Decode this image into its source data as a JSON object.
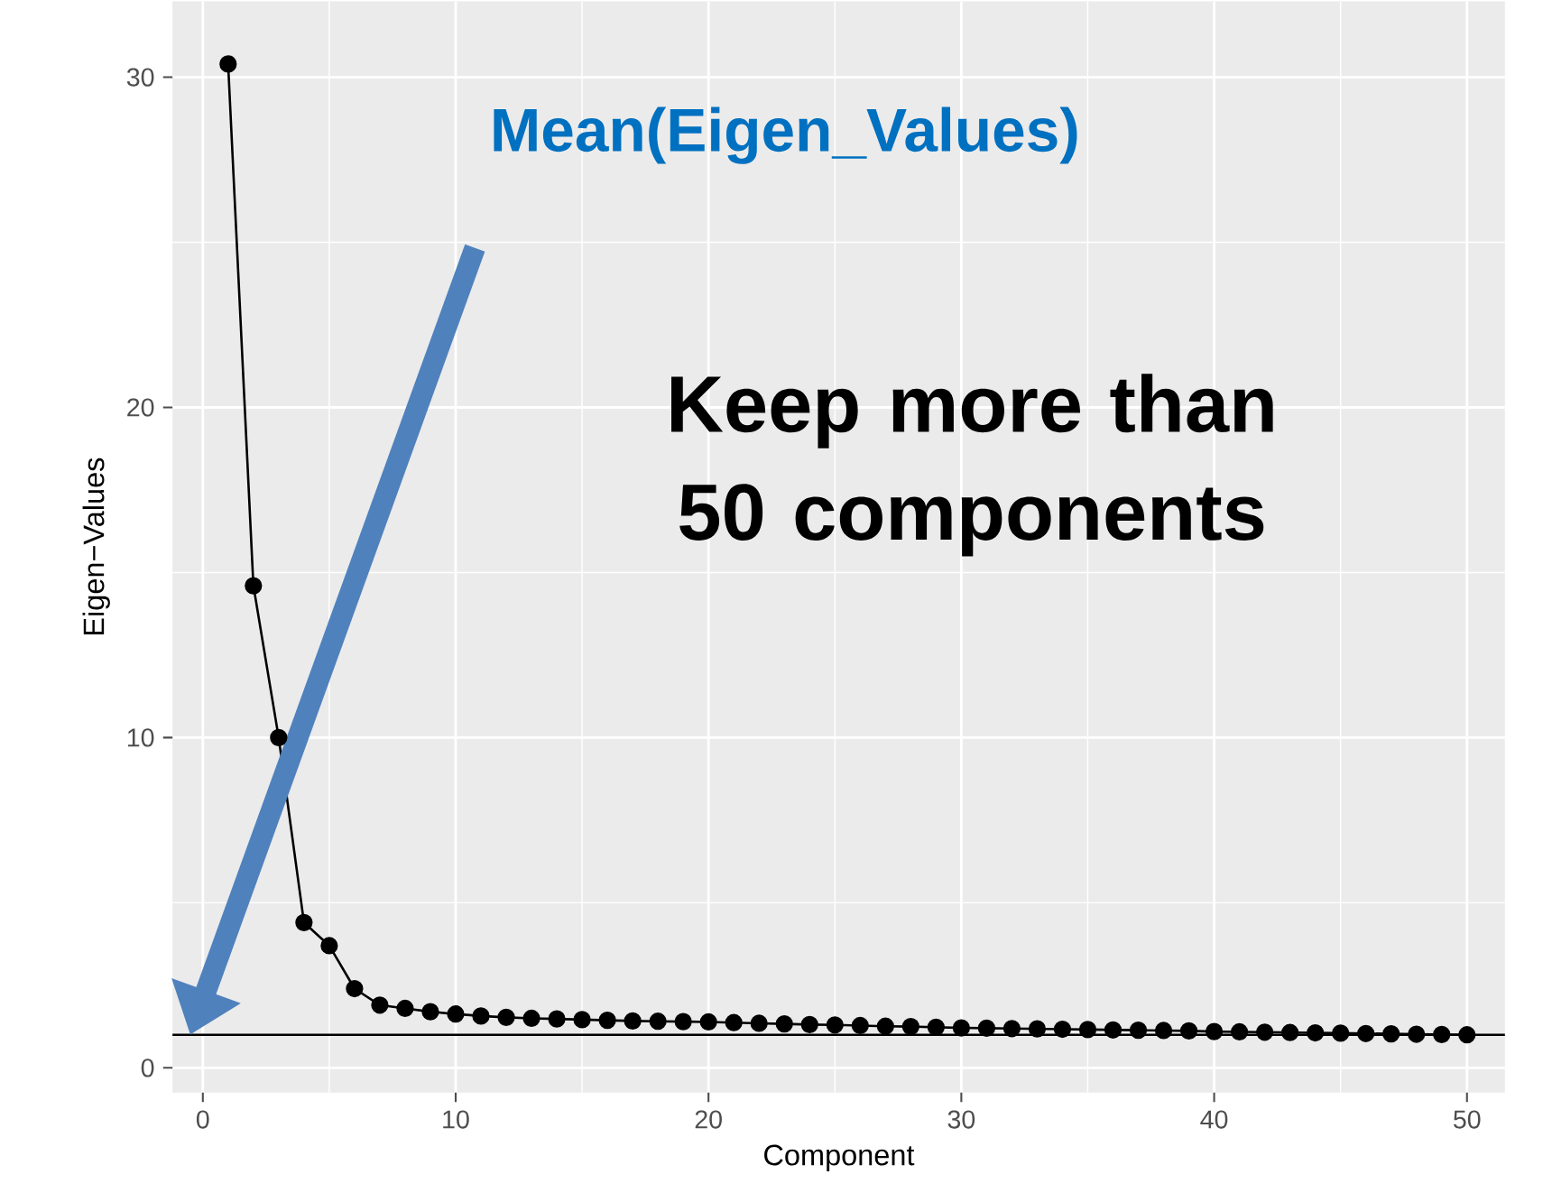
{
  "chart_data": {
    "type": "line",
    "xlabel": "Component",
    "ylabel": "Eigen−Values",
    "x": [
      1,
      2,
      3,
      4,
      5,
      6,
      7,
      8,
      9,
      10,
      11,
      12,
      13,
      14,
      15,
      16,
      17,
      18,
      19,
      20,
      21,
      22,
      23,
      24,
      25,
      26,
      27,
      28,
      29,
      30,
      31,
      32,
      33,
      34,
      35,
      36,
      37,
      38,
      39,
      40,
      41,
      42,
      43,
      44,
      45,
      46,
      47,
      48,
      49,
      50
    ],
    "series": [
      {
        "color": "#000000",
        "values": [
          30.4,
          14.6,
          10.0,
          4.4,
          3.7,
          2.4,
          1.9,
          1.8,
          1.7,
          1.63,
          1.57,
          1.53,
          1.5,
          1.48,
          1.46,
          1.44,
          1.42,
          1.41,
          1.4,
          1.39,
          1.37,
          1.35,
          1.33,
          1.31,
          1.3,
          1.28,
          1.26,
          1.25,
          1.23,
          1.21,
          1.2,
          1.19,
          1.18,
          1.17,
          1.16,
          1.15,
          1.14,
          1.13,
          1.12,
          1.1,
          1.09,
          1.08,
          1.07,
          1.06,
          1.05,
          1.04,
          1.03,
          1.02,
          1.01,
          1.0
        ]
      }
    ],
    "xlim": [
      -1.2,
      51.5
    ],
    "ylim": [
      -0.75,
      32.3
    ],
    "xticks": [
      0,
      10,
      20,
      30,
      40,
      50
    ],
    "yticks": [
      0,
      10,
      20,
      30
    ],
    "grid": true,
    "marker": "circle",
    "line_style": "solid",
    "ref_lines": [
      {
        "axis": "y",
        "value": 1.0,
        "color": "#000000"
      }
    ],
    "annotations": [
      "Mean(Eigen_Values)",
      "Keep more than 50 components"
    ]
  }
}
